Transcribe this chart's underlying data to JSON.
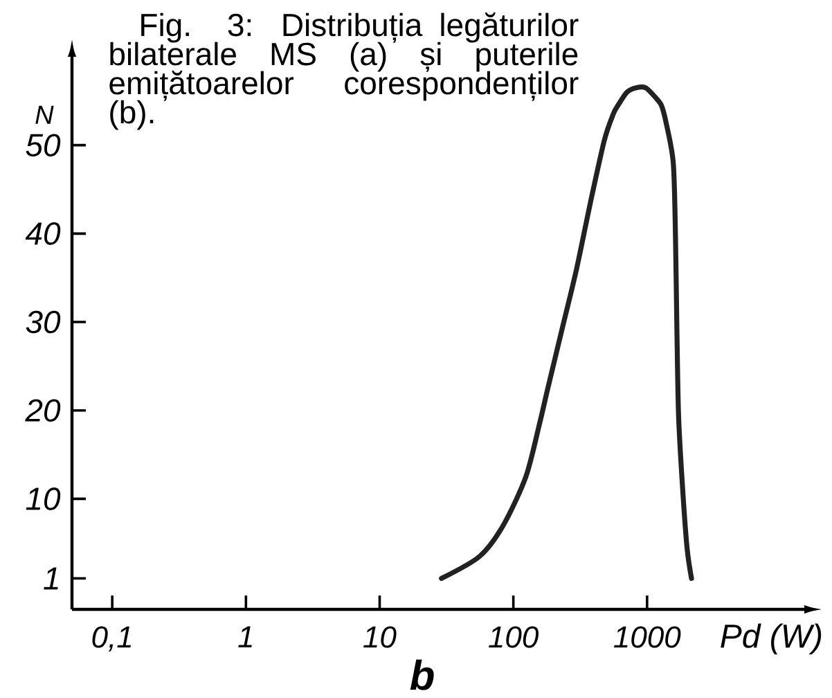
{
  "chart_data": {
    "type": "line",
    "title": "Fig. 3: Distribuția legăturilor bilaterale MS (a) și puterile emițătoarelor corespondenților (b).",
    "xlabel": "Pd (W)",
    "ylabel": "N",
    "annotations": [
      "b"
    ],
    "log": "x",
    "x": [
      29,
      56,
      84,
      124,
      157,
      181,
      234,
      297,
      377,
      478,
      558,
      606,
      708,
      830,
      975,
      1140,
      1280,
      1390,
      1570,
      1630,
      1670,
      1720,
      1830,
      1990,
      2150
    ],
    "series": [
      {
        "color": "#222222",
        "values": [
          1,
          3.5,
          7,
          12.5,
          18.5,
          22.5,
          29.5,
          36,
          43.5,
          50.5,
          53.5,
          54.5,
          56,
          56.5,
          56.5,
          55.5,
          54.5,
          52.5,
          48,
          40,
          29.5,
          19.5,
          12,
          4.5,
          1
        ]
      }
    ],
    "xlim": [
      0.05,
      15000
    ],
    "ylim": [
      -2.5,
      60
    ],
    "xticks": [
      {
        "value": 0.1,
        "label": "0,1"
      },
      1,
      10,
      100,
      1000
    ],
    "yticks": [
      1,
      10,
      20,
      30,
      40,
      50
    ],
    "marker": "none",
    "line_style": "solid"
  }
}
